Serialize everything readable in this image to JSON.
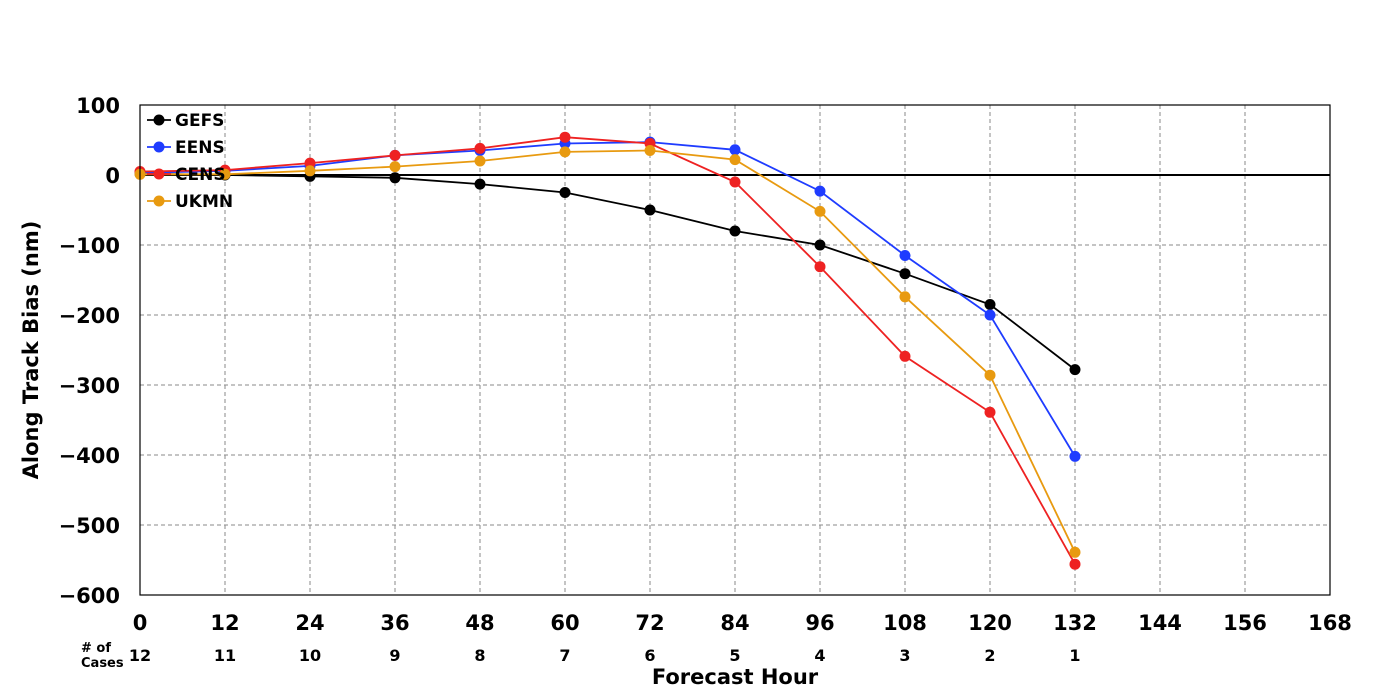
{
  "chart_data": {
    "type": "line",
    "title": "",
    "xlabel": "Forecast Hour",
    "ylabel": "Along Track Bias (nm)",
    "xlim": [
      0,
      168
    ],
    "ylim": [
      -600,
      100
    ],
    "x_ticks": [
      "0",
      "12",
      "24",
      "36",
      "48",
      "60",
      "72",
      "84",
      "96",
      "108",
      "120",
      "132",
      "144",
      "156",
      "168"
    ],
    "y_ticks": [
      "100",
      "0",
      "−100",
      "−200",
      "−300",
      "−400",
      "−500",
      "−600"
    ],
    "grid": true,
    "legend_position": "top-left",
    "cases_title": "# of\nCases",
    "cases": [
      "12",
      "11",
      "10",
      "9",
      "8",
      "7",
      "6",
      "5",
      "4",
      "3",
      "2",
      "1"
    ],
    "x": [
      0,
      12,
      24,
      36,
      48,
      60,
      72,
      84,
      96,
      108,
      120,
      132
    ],
    "series": [
      {
        "name": "GEFS",
        "color": "#000000",
        "values": [
          2,
          0,
          -2,
          -4,
          -13,
          -25,
          -50,
          -80,
          -100,
          -141,
          -185,
          -278
        ]
      },
      {
        "name": "EENS",
        "color": "#1f3cff",
        "values": [
          3,
          6,
          13,
          28,
          35,
          45,
          47,
          36,
          -23,
          -115,
          -200,
          -402
        ]
      },
      {
        "name": "CENS",
        "color": "#ee2222",
        "values": [
          5,
          7,
          17,
          28,
          38,
          54,
          45,
          -10,
          -131,
          -259,
          -339,
          -556
        ]
      },
      {
        "name": "UKMN",
        "color": "#e89a10",
        "values": [
          1,
          1,
          6,
          12,
          20,
          33,
          35,
          22,
          -52,
          -174,
          -286,
          -539
        ]
      }
    ]
  }
}
